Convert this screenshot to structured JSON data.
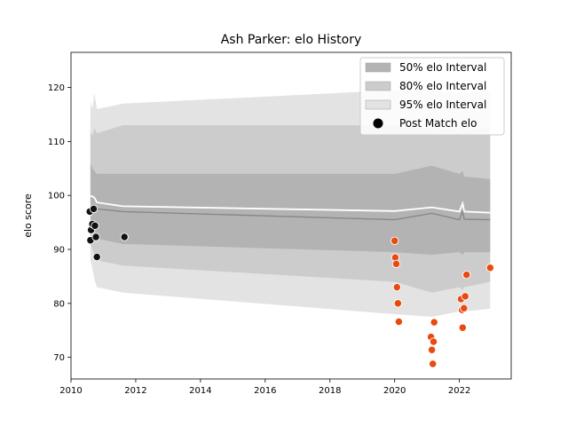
{
  "chart_data": {
    "type": "line",
    "title": "Ash Parker: elo History",
    "xlabel": "",
    "ylabel": "elo score",
    "xlim": [
      2010.0,
      2023.6
    ],
    "ylim": [
      66.0,
      126.5
    ],
    "xticks": [
      2010,
      2012,
      2014,
      2016,
      2018,
      2020,
      2022
    ],
    "yticks": [
      70,
      80,
      90,
      100,
      110,
      120
    ],
    "grid": false,
    "legend_position": "top-right",
    "legend": [
      {
        "label": "50% elo Interval",
        "kind": "band",
        "color": "#b3b3b3"
      },
      {
        "label": "80% elo Interval",
        "kind": "band",
        "color": "#cccccc"
      },
      {
        "label": "95% elo Interval",
        "kind": "band",
        "color": "#e3e3e3"
      },
      {
        "label": "Post Match elo",
        "kind": "marker",
        "color": "#000000"
      }
    ],
    "bands": {
      "x": [
        2010.6,
        2010.66,
        2010.72,
        2010.8,
        2011.6,
        2020.0,
        2021.15,
        2022.0,
        2022.1,
        2022.15,
        2022.95
      ],
      "p95_lo": [
        88.0,
        86.5,
        84.5,
        83.0,
        82.0,
        78.0,
        77.5,
        78.5,
        78.0,
        78.5,
        79.0
      ],
      "p95_hi": [
        117.5,
        116.0,
        119.0,
        116.0,
        117.0,
        119.5,
        119.5,
        119.0,
        121.0,
        119.0,
        119.5
      ],
      "p80_lo": [
        91.0,
        90.0,
        89.0,
        88.0,
        87.0,
        84.0,
        82.0,
        83.0,
        82.5,
        83.0,
        84.0
      ],
      "p80_hi": [
        112.0,
        111.0,
        112.5,
        111.5,
        113.0,
        113.0,
        112.5,
        112.0,
        113.5,
        112.0,
        112.5
      ],
      "p50_lo": [
        94.0,
        93.0,
        92.5,
        92.0,
        91.0,
        89.5,
        89.0,
        89.5,
        89.0,
        89.5,
        89.5
      ],
      "p50_hi": [
        106.0,
        105.0,
        104.5,
        104.0,
        104.0,
        104.0,
        105.5,
        104.0,
        104.5,
        103.5,
        103.0
      ]
    },
    "series": [
      {
        "kind": "median",
        "color": "#888888",
        "x": [
          2010.6,
          2010.66,
          2010.72,
          2010.8,
          2011.6,
          2020.0,
          2021.15,
          2022.0,
          2022.1,
          2022.15,
          2022.95
        ],
        "values": [
          98.0,
          97.8,
          97.5,
          97.5,
          97.0,
          95.5,
          96.7,
          95.5,
          97.0,
          95.6,
          95.5
        ]
      },
      {
        "kind": "mean",
        "color": "#ffffff",
        "x": [
          2010.6,
          2010.66,
          2010.72,
          2010.8,
          2011.6,
          2020.0,
          2021.15,
          2022.0,
          2022.1,
          2022.15,
          2022.95
        ],
        "values": [
          99.9,
          99.8,
          99.6,
          98.7,
          98.0,
          97.1,
          97.8,
          97.0,
          98.5,
          97.0,
          96.8
        ]
      }
    ],
    "points_early": {
      "color": "#111111",
      "x": [
        2010.58,
        2010.6,
        2010.62,
        2010.66,
        2010.7,
        2010.74,
        2010.77,
        2010.8,
        2011.65
      ],
      "values": [
        97.0,
        91.7,
        93.6,
        94.7,
        97.5,
        94.4,
        92.3,
        88.6,
        92.3
      ]
    },
    "points_late": {
      "color": "#e84a10",
      "x": [
        2020.0,
        2020.02,
        2020.05,
        2020.07,
        2020.1,
        2020.13,
        2021.12,
        2021.15,
        2021.18,
        2021.2,
        2021.22,
        2022.05,
        2022.08,
        2022.1,
        2022.14,
        2022.18,
        2022.22,
        2022.95
      ],
      "values": [
        91.6,
        88.5,
        87.3,
        83.0,
        80.0,
        76.6,
        73.8,
        71.4,
        68.8,
        72.9,
        76.5,
        80.8,
        78.8,
        75.5,
        79.1,
        81.3,
        85.3,
        86.6
      ]
    }
  }
}
